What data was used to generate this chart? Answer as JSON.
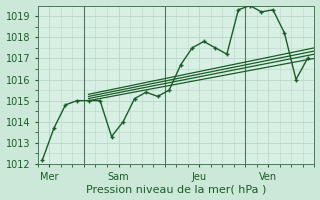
{
  "background_color": "#cce8d8",
  "plot_bg_color": "#d8f0e4",
  "grid_color": "#b8d8c8",
  "line_color": "#1a5c28",
  "vline_color": "#4a7a58",
  "ylim": [
    1012,
    1019.5
  ],
  "yticks": [
    1012,
    1013,
    1014,
    1015,
    1016,
    1017,
    1018,
    1019
  ],
  "xlabel": "Pression niveau de la mer( hPa )",
  "xlabel_fontsize": 8,
  "tick_fontsize": 7,
  "xlim": [
    0,
    12
  ],
  "day_positions": [
    0.5,
    3.5,
    7,
    10
  ],
  "day_labels": [
    "Mer",
    "Sam",
    "Jeu",
    "Ven"
  ],
  "vline_positions": [
    2,
    5.5,
    9
  ],
  "series1": {
    "x": [
      0.2,
      0.7,
      1.2,
      1.7,
      2.2,
      2.7,
      3.2,
      3.7,
      4.2,
      4.7,
      5.2,
      5.7,
      6.2,
      6.7,
      7.2,
      7.7,
      8.2,
      8.7,
      9.2,
      9.7,
      10.2,
      10.7,
      11.2,
      11.7
    ],
    "y": [
      1012.2,
      1013.7,
      1014.8,
      1015.0,
      1015.0,
      1015.0,
      1013.3,
      1014.0,
      1015.1,
      1015.4,
      1015.2,
      1015.5,
      1016.7,
      1017.5,
      1017.8,
      1017.5,
      1017.2,
      1019.3,
      1019.5,
      1019.2,
      1019.3,
      1018.2,
      1016.0,
      1017.0
    ],
    "marker": "P",
    "markersize": 3.5,
    "linewidth": 1.0,
    "color": "#1a5c28"
  },
  "series_linear": [
    {
      "x": [
        2.2,
        12.0
      ],
      "y": [
        1015.0,
        1017.0
      ],
      "color": "#1a5c28",
      "linewidth": 0.9
    },
    {
      "x": [
        2.2,
        12.0
      ],
      "y": [
        1015.1,
        1017.2
      ],
      "color": "#1a5c28",
      "linewidth": 0.9
    },
    {
      "x": [
        2.2,
        12.0
      ],
      "y": [
        1015.2,
        1017.35
      ],
      "color": "#1a5c28",
      "linewidth": 0.9
    },
    {
      "x": [
        2.2,
        12.0
      ],
      "y": [
        1015.3,
        1017.5
      ],
      "color": "#1a5c28",
      "linewidth": 0.9
    }
  ]
}
